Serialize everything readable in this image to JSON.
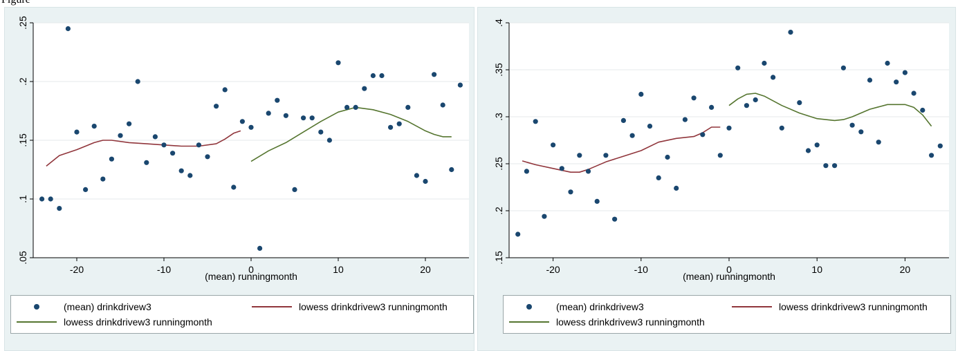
{
  "caption": "Figure",
  "colors": {
    "scatter": "#1a476f",
    "lowess_pre": "#90353b",
    "lowess_post": "#55752f",
    "plot_bg": "#ffffff",
    "panel_bg": "#eaf2f3",
    "grid": "#e4eaeb"
  },
  "legend": {
    "scatter_label": "(mean) drinkdrivew3",
    "lowess_pre_label": "lowess drinkdrivew3 runningmonth",
    "lowess_post_label": "lowess drinkdrivew3 runningmonth"
  },
  "chart_data": [
    {
      "type": "scatter",
      "title": "",
      "xlabel": "(mean) runningmonth",
      "ylabel": "",
      "xlim": [
        -25,
        25
      ],
      "ylim": [
        0.05,
        0.25
      ],
      "xticks": [
        -20,
        -10,
        0,
        10,
        20
      ],
      "xtick_labels": [
        "-20",
        "-10",
        "0",
        "10",
        "20"
      ],
      "yticks": [
        0.05,
        0.1,
        0.15,
        0.2,
        0.25
      ],
      "ytick_labels": [
        ".05",
        ".1",
        ".15",
        ".2",
        ".25"
      ],
      "grid": true,
      "legend_position": "bottom",
      "series": [
        {
          "name": "(mean) drinkdrivew3",
          "kind": "points",
          "x": [
            -24,
            -23,
            -22,
            -21,
            -20,
            -19,
            -18,
            -17,
            -16,
            -15,
            -14,
            -13,
            -12,
            -11,
            -10,
            -9,
            -8,
            -7,
            -6,
            -5,
            -4,
            -3,
            -2,
            -1,
            0,
            1,
            2,
            3,
            4,
            5,
            6,
            7,
            8,
            9,
            10,
            11,
            12,
            13,
            14,
            15,
            16,
            17,
            18,
            19,
            20,
            21,
            22,
            23,
            24
          ],
          "y": [
            0.1,
            0.1,
            0.092,
            0.245,
            0.157,
            0.108,
            0.162,
            0.117,
            0.134,
            0.154,
            0.164,
            0.2,
            0.131,
            0.153,
            0.146,
            0.139,
            0.124,
            0.12,
            0.146,
            0.136,
            0.179,
            0.193,
            0.11,
            0.166,
            0.161,
            0.058,
            0.173,
            0.184,
            0.171,
            0.108,
            0.169,
            0.169,
            0.157,
            0.15,
            0.216,
            0.178,
            0.178,
            0.194,
            0.205,
            0.205,
            0.161,
            0.164,
            0.178,
            0.12,
            0.115,
            0.206,
            0.18,
            0.125,
            0.197
          ]
        },
        {
          "name": "lowess drinkdrivew3 runningmonth",
          "kind": "line",
          "x": [
            -23.5,
            -22,
            -20,
            -18,
            -17,
            -16,
            -14,
            -12,
            -10,
            -8,
            -6,
            -4,
            -3,
            -2,
            -1.2
          ],
          "y": [
            0.128,
            0.137,
            0.142,
            0.148,
            0.15,
            0.15,
            0.148,
            0.147,
            0.146,
            0.145,
            0.145,
            0.147,
            0.151,
            0.156,
            0.158
          ]
        },
        {
          "name": "lowess drinkdrivew3 runningmonth",
          "kind": "line",
          "x": [
            0,
            2,
            4,
            6,
            8,
            10,
            12,
            14,
            16,
            18,
            20,
            21,
            22,
            23
          ],
          "y": [
            0.132,
            0.141,
            0.148,
            0.157,
            0.166,
            0.174,
            0.178,
            0.176,
            0.172,
            0.166,
            0.158,
            0.155,
            0.153,
            0.153
          ]
        }
      ]
    },
    {
      "type": "scatter",
      "title": "",
      "xlabel": "(mean) runningmonth",
      "ylabel": "",
      "xlim": [
        -25,
        25
      ],
      "ylim": [
        0.15,
        0.4
      ],
      "xticks": [
        -20,
        -10,
        0,
        10,
        20
      ],
      "xtick_labels": [
        "-20",
        "-10",
        "0",
        "10",
        "20"
      ],
      "yticks": [
        0.15,
        0.2,
        0.25,
        0.3,
        0.35,
        0.4
      ],
      "ytick_labels": [
        ".15",
        ".2",
        ".25",
        ".3",
        ".35",
        ".4"
      ],
      "grid": true,
      "legend_position": "bottom",
      "series": [
        {
          "name": "(mean) drinkdrivew3",
          "kind": "points",
          "x": [
            -24,
            -23,
            -22,
            -21,
            -20,
            -19,
            -18,
            -17,
            -16,
            -15,
            -14,
            -13,
            -12,
            -11,
            -10,
            -9,
            -8,
            -7,
            -6,
            -5,
            -4,
            -3,
            -2,
            -1,
            0,
            1,
            2,
            3,
            4,
            5,
            6,
            7,
            8,
            9,
            10,
            11,
            12,
            13,
            14,
            15,
            16,
            17,
            18,
            19,
            20,
            21,
            22,
            23,
            24
          ],
          "y": [
            0.175,
            0.242,
            0.295,
            0.194,
            0.27,
            0.245,
            0.22,
            0.259,
            0.242,
            0.21,
            0.259,
            0.191,
            0.296,
            0.28,
            0.324,
            0.29,
            0.235,
            0.257,
            0.224,
            0.297,
            0.32,
            0.281,
            0.31,
            0.259,
            0.288,
            0.352,
            0.312,
            0.318,
            0.357,
            0.342,
            0.288,
            0.39,
            0.315,
            0.264,
            0.27,
            0.248,
            0.248,
            0.352,
            0.291,
            0.284,
            0.339,
            0.273,
            0.357,
            0.337,
            0.347,
            0.325,
            0.307,
            0.259,
            0.269
          ]
        },
        {
          "name": "lowess drinkdrivew3 runningmonth",
          "kind": "line",
          "x": [
            -23.5,
            -22,
            -20,
            -18,
            -17,
            -16,
            -14,
            -12,
            -10,
            -8,
            -6,
            -4,
            -3,
            -2,
            -1
          ],
          "y": [
            0.253,
            0.249,
            0.245,
            0.241,
            0.241,
            0.244,
            0.252,
            0.258,
            0.264,
            0.273,
            0.277,
            0.279,
            0.283,
            0.289,
            0.289
          ]
        },
        {
          "name": "lowess drinkdrivew3 runningmonth",
          "kind": "line",
          "x": [
            0,
            1,
            2,
            3,
            4,
            6,
            8,
            10,
            12,
            13,
            14,
            16,
            18,
            20,
            21,
            22,
            23
          ],
          "y": [
            0.312,
            0.319,
            0.324,
            0.325,
            0.322,
            0.312,
            0.304,
            0.298,
            0.296,
            0.297,
            0.3,
            0.308,
            0.313,
            0.313,
            0.31,
            0.302,
            0.29
          ]
        }
      ]
    }
  ]
}
